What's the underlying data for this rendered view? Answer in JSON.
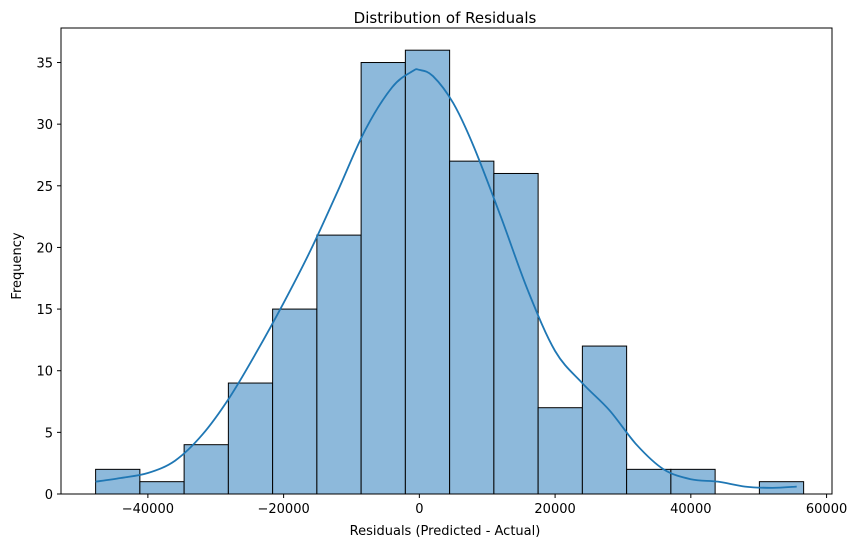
{
  "chart_data": {
    "type": "histogram",
    "title": "Distribution of Residuals",
    "xlabel": "Residuals (Predicted - Actual)",
    "ylabel": "Frequency",
    "xlim": [
      -52800,
      60800
    ],
    "ylim": [
      0,
      37.8
    ],
    "xticks": [
      -40000,
      -20000,
      0,
      20000,
      40000,
      60000
    ],
    "xtick_labels": [
      "−40000",
      "−20000",
      "0",
      "20000",
      "40000",
      "60000"
    ],
    "yticks": [
      0,
      5,
      10,
      15,
      20,
      25,
      30,
      35
    ],
    "ytick_labels": [
      "0",
      "5",
      "10",
      "15",
      "20",
      "25",
      "30",
      "35"
    ],
    "bin_edges": [
      -47700,
      -41180,
      -34660,
      -28140,
      -21620,
      -15100,
      -8580,
      -2060,
      4460,
      10980,
      17500,
      24020,
      30540,
      37060,
      43580,
      50100,
      56620
    ],
    "counts": [
      2,
      1,
      4,
      9,
      15,
      21,
      35,
      36,
      27,
      26,
      7,
      12,
      2,
      2,
      0,
      1
    ],
    "kde": {
      "x": [
        -47700,
        -44000,
        -40000,
        -36000,
        -32000,
        -28000,
        -24000,
        -20000,
        -16000,
        -12000,
        -8000,
        -4000,
        -1000,
        0,
        2000,
        5000,
        8000,
        12000,
        16000,
        20000,
        24000,
        28000,
        32000,
        36000,
        40000,
        44000,
        48000,
        52000,
        55600
      ],
      "y": [
        1.0,
        1.3,
        1.7,
        2.7,
        4.8,
        7.8,
        11.5,
        15.5,
        19.8,
        24.6,
        29.5,
        33.0,
        34.3,
        34.4,
        33.9,
        31.7,
        28.2,
        22.5,
        16.5,
        11.6,
        9.0,
        6.8,
        4.0,
        2.0,
        1.2,
        1.0,
        0.6,
        0.5,
        0.6
      ]
    },
    "colors": {
      "bar_fill": "#8db9db",
      "bar_edge": "#000000",
      "line": "#1f77b4"
    },
    "grid": false,
    "legend": false
  }
}
